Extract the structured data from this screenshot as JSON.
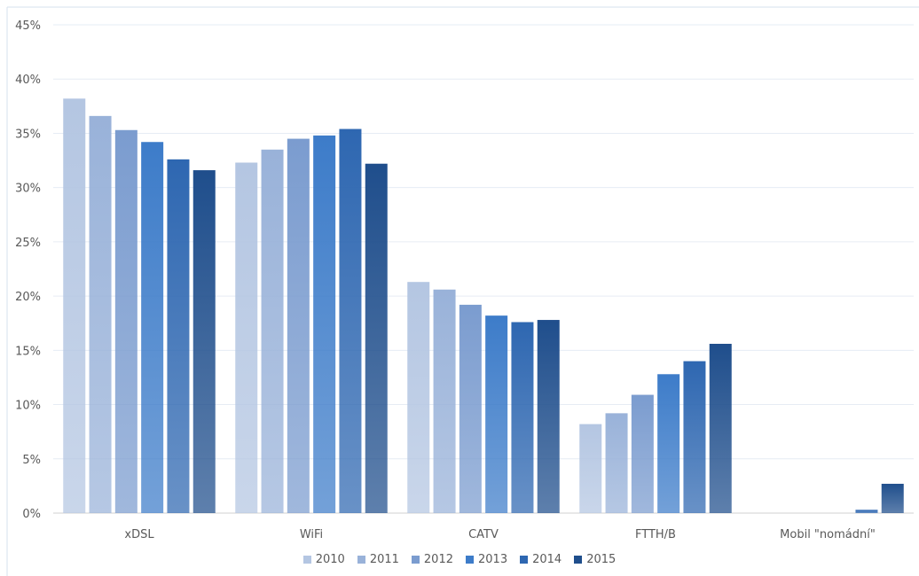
{
  "chart_data": {
    "type": "bar",
    "categories": [
      "xDSL",
      "WiFi",
      "CATV",
      "FTTH/B",
      "Mobil \"nomádní\""
    ],
    "series": [
      {
        "name": "2010",
        "color": "#b4c6e2",
        "values": [
          38.2,
          32.3,
          21.3,
          8.2,
          0
        ]
      },
      {
        "name": "2011",
        "color": "#99b2d9",
        "values": [
          36.6,
          33.5,
          20.6,
          9.2,
          0
        ]
      },
      {
        "name": "2012",
        "color": "#7b9ccf",
        "values": [
          35.3,
          34.5,
          19.2,
          10.9,
          0
        ]
      },
      {
        "name": "2013",
        "color": "#3d7cc9",
        "values": [
          34.2,
          34.8,
          18.2,
          12.8,
          0
        ]
      },
      {
        "name": "2014",
        "color": "#2e67b1",
        "values": [
          32.6,
          35.4,
          17.6,
          14.0,
          0.3
        ]
      },
      {
        "name": "2015",
        "color": "#1f4e8c",
        "values": [
          31.6,
          32.2,
          17.8,
          15.6,
          2.7
        ]
      }
    ],
    "ylim": [
      0,
      45
    ],
    "yticks": [
      "0%",
      "5%",
      "10%",
      "15%",
      "20%",
      "25%",
      "30%",
      "35%",
      "40%",
      "45%"
    ],
    "grid": true,
    "legend": "bottom"
  }
}
